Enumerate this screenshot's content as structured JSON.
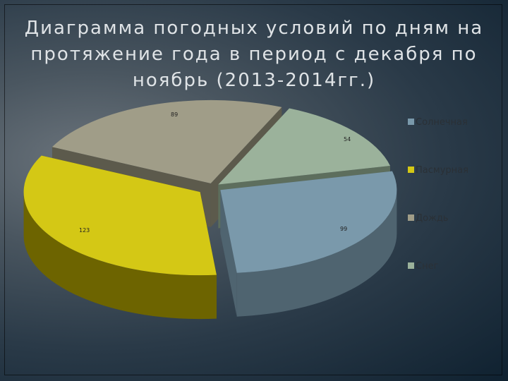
{
  "title": "Диаграмма погодных условий по дням на протяжение года в период с декабря по ноябрь (2013-2014гг.)",
  "chart_data": {
    "type": "pie",
    "title": "Диаграмма погодных условий по дням на протяжение года в период с декабря по ноябрь (2013-2014гг.)",
    "style": "3d-exploded",
    "legend_position": "right",
    "series": [
      {
        "name": "Солнечная",
        "value": 99,
        "color": "#7a99ab",
        "side_color": "#4f6470"
      },
      {
        "name": "Пасмурная",
        "value": 123,
        "color": "#d4c815",
        "side_color": "#6d6400"
      },
      {
        "name": "Дождь",
        "value": 89,
        "color": "#a09d88",
        "side_color": "#5c5a4c"
      },
      {
        "name": "Снег",
        "value": 54,
        "color": "#9bb29b",
        "side_color": "#5d6e5d"
      }
    ],
    "data_labels": [
      "99",
      "123",
      "89",
      "54"
    ]
  }
}
